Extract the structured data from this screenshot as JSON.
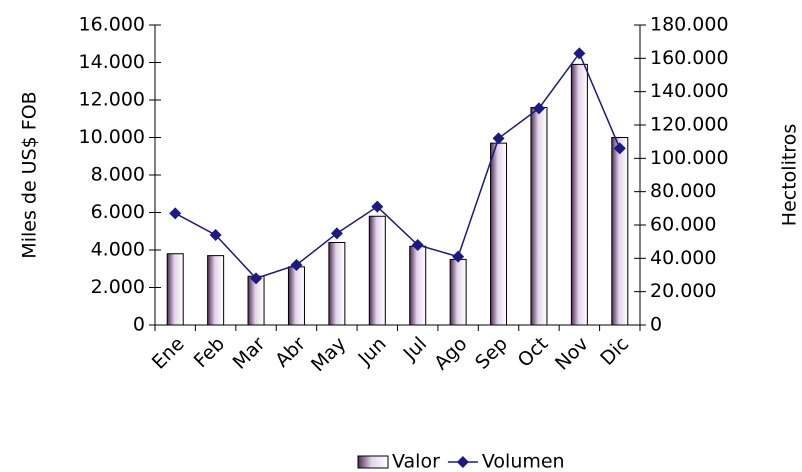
{
  "chart_data": {
    "type": "bar",
    "categories": [
      "Ene",
      "Feb",
      "Mar",
      "Abr",
      "May",
      "Jun",
      "Jul",
      "Ago",
      "Sep",
      "Oct",
      "Nov",
      "Dic"
    ],
    "series": [
      {
        "name": "Valor",
        "type": "bar",
        "color": "#e4d4ea",
        "values": [
          3800,
          3700,
          2600,
          3100,
          4400,
          5800,
          4200,
          3500,
          9700,
          11600,
          13900,
          10000
        ]
      },
      {
        "name": "Volumen",
        "type": "line",
        "axis": "y2",
        "color": "#1a1a80",
        "values": [
          67000,
          54000,
          28000,
          36000,
          55000,
          71000,
          48000,
          41000,
          112000,
          130000,
          163000,
          106000
        ]
      }
    ],
    "ylabel": "Miles de US$ FOB",
    "y2label": "Hectolitros",
    "ylim": [
      0,
      16000
    ],
    "yticks": [
      0,
      {
        "value": 2000,
        "label": "2.000"
      },
      {
        "value": 4000,
        "label": "4.000"
      },
      {
        "value": 6000,
        "label": "6.000"
      },
      {
        "value": 8000,
        "label": "8.000"
      },
      {
        "value": 10000,
        "label": "10.000"
      },
      {
        "value": 12000,
        "label": "12.000"
      },
      {
        "value": 14000,
        "label": "14.000"
      },
      {
        "value": 16000,
        "label": "16.000"
      }
    ],
    "y2lim": [
      0,
      180000
    ],
    "y2ticks": [
      0,
      {
        "value": 20000,
        "label": "20.000"
      },
      {
        "value": 40000,
        "label": "40.000"
      },
      {
        "value": 60000,
        "label": "60.000"
      },
      {
        "value": 80000,
        "label": "80.000"
      },
      {
        "value": 100000,
        "label": "100.000"
      },
      {
        "value": 120000,
        "label": "120.000"
      },
      {
        "value": 140000,
        "label": "140.000"
      },
      {
        "value": 160000,
        "label": "160.000"
      },
      {
        "value": 180000,
        "label": "180.000"
      }
    ],
    "grid": false,
    "legend": "bottom"
  }
}
